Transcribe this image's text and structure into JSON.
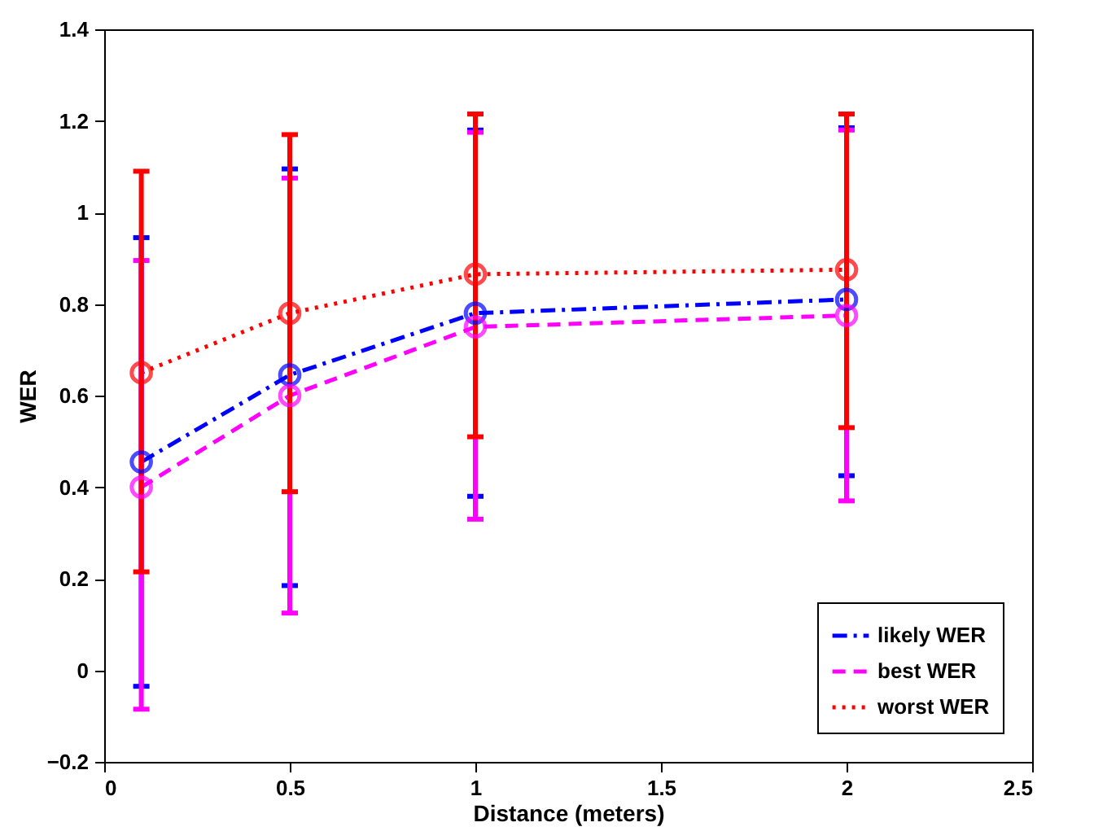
{
  "chart_data": {
    "type": "line",
    "xlabel": "Distance (meters)",
    "ylabel": "WER",
    "x": [
      0.1,
      0.5,
      1,
      2
    ],
    "xlim": [
      0,
      2.5
    ],
    "xticks": [
      0,
      0.5,
      1,
      1.5,
      2,
      2.5
    ],
    "ylim": [
      -0.2,
      1.4
    ],
    "yticks": [
      -0.2,
      0,
      0.2,
      0.4,
      0.6,
      0.8,
      1,
      1.2,
      1.4
    ],
    "grid": false,
    "legend": "bottom right",
    "marker": "circle",
    "series": [
      {
        "name": "likely WER",
        "color": "#0000ff",
        "line_style": "dashdot",
        "values": [
          0.455,
          0.645,
          0.78,
          0.81
        ],
        "errors": [
          [
            -0.035,
            0.945
          ],
          [
            0.185,
            1.095
          ],
          [
            0.38,
            1.18
          ],
          [
            0.425,
            1.185
          ]
        ]
      },
      {
        "name": "best WER",
        "color": "#ff00ff",
        "line_style": "dashed",
        "values": [
          0.4,
          0.6,
          0.75,
          0.775
        ],
        "errors": [
          [
            -0.085,
            0.895
          ],
          [
            0.125,
            1.075
          ],
          [
            0.33,
            1.175
          ],
          [
            0.37,
            1.18
          ]
        ]
      },
      {
        "name": "worst WER",
        "color": "#ff0000",
        "line_style": "dotted",
        "values": [
          0.65,
          0.78,
          0.865,
          0.875
        ],
        "errors": [
          [
            0.215,
            1.09
          ],
          [
            0.39,
            1.17
          ],
          [
            0.51,
            1.215
          ],
          [
            0.53,
            1.215
          ]
        ]
      }
    ]
  }
}
